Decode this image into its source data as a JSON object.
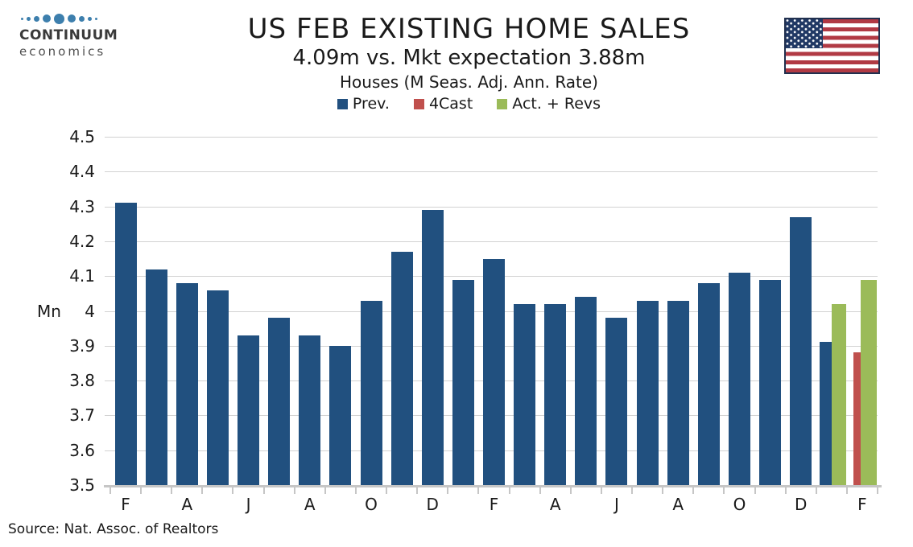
{
  "logo": {
    "line1": "CONTINUUM",
    "line2": "economics",
    "dot_sizes": [
      3,
      5,
      7,
      10,
      13,
      10,
      7,
      5,
      3
    ],
    "dot_color": "#3d7fad"
  },
  "header": {
    "title": "US FEB EXISTING HOME SALES",
    "subtitle": "4.09m vs. Mkt expectation 3.88m",
    "subtitle2": "Houses (M Seas. Adj. Ann. Rate)"
  },
  "legend": [
    {
      "label": "Prev.",
      "color": "#21507f"
    },
    {
      "label": "4Cast",
      "color": "#c0504d"
    },
    {
      "label": "Act. + Revs",
      "color": "#9bbb59"
    }
  ],
  "flag": {
    "name": "us-flag"
  },
  "source": "Source: Nat. Assoc. of Realtors",
  "chart_data": {
    "type": "bar",
    "title": "US FEB EXISTING HOME SALES",
    "subtitle": "4.09m vs. Mkt expectation 3.88m",
    "units_note": "Houses (M Seas. Adj. Ann. Rate)",
    "xlabel": "",
    "ylabel": "Mn",
    "ylim": [
      3.5,
      4.5
    ],
    "grid": true,
    "legend_position": "top",
    "ytick_values": [
      4.5,
      4.4,
      4.3,
      4.2,
      4.1,
      4.0,
      3.9,
      3.8,
      3.7,
      3.6,
      3.5
    ],
    "ytick_labels": [
      "4.5",
      "4.4",
      "4.3",
      "4.2",
      "4.1",
      "4",
      "3.9",
      "3.8",
      "3.7",
      "3.6",
      "3.5"
    ],
    "x_months": 25,
    "x_tick_labels": [
      "F",
      "A",
      "J",
      "A",
      "O",
      "D",
      "F",
      "A",
      "J",
      "A",
      "O",
      "D",
      "F"
    ],
    "x_label_slot_indices": [
      0,
      2,
      4,
      6,
      8,
      10,
      12,
      14,
      16,
      18,
      20,
      22,
      24
    ],
    "series": [
      {
        "name": "Prev.",
        "color": "#21507f",
        "values": [
          4.31,
          4.12,
          4.08,
          4.06,
          3.93,
          3.98,
          3.93,
          3.9,
          4.03,
          4.17,
          4.29,
          4.09,
          4.15,
          4.02,
          4.02,
          4.04,
          3.98,
          4.03,
          4.03,
          4.08,
          4.11,
          4.09,
          4.27,
          3.91,
          null
        ]
      },
      {
        "name": "4Cast",
        "color": "#c0504d",
        "values": [
          null,
          null,
          null,
          null,
          null,
          null,
          null,
          null,
          null,
          null,
          null,
          null,
          null,
          null,
          null,
          null,
          null,
          null,
          null,
          null,
          null,
          null,
          null,
          null,
          3.88
        ]
      },
      {
        "name": "Act. + Revs",
        "color": "#9bbb59",
        "values": [
          null,
          null,
          null,
          null,
          null,
          null,
          null,
          null,
          null,
          null,
          null,
          null,
          null,
          null,
          null,
          null,
          null,
          null,
          null,
          null,
          null,
          null,
          null,
          4.02,
          4.09
        ]
      }
    ]
  }
}
